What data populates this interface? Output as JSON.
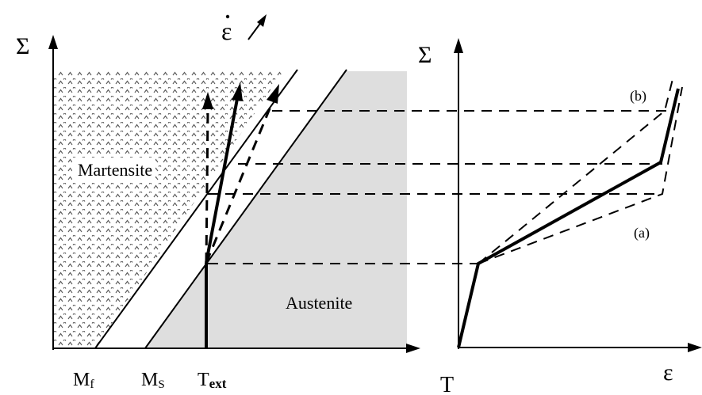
{
  "left_diagram": {
    "y_axis_label": "Σ",
    "x_axis_label": "T",
    "rate_label": "ε",
    "region_martensite": "Martensite",
    "region_austenite": "Austenite",
    "tick_mf": "M",
    "tick_mf_sub": "f",
    "tick_ms": "M",
    "tick_ms_sub": "S",
    "tick_text": "T",
    "tick_text_sub": "ext"
  },
  "right_diagram": {
    "y_axis_label": "Σ",
    "x_axis_label": "ε",
    "curve_b_label": "(b)",
    "curve_a_label": "(a)"
  },
  "colors": {
    "austenite_fill": "#dedede",
    "martensite_pattern": "#5a5a5a",
    "line": "#000000"
  }
}
